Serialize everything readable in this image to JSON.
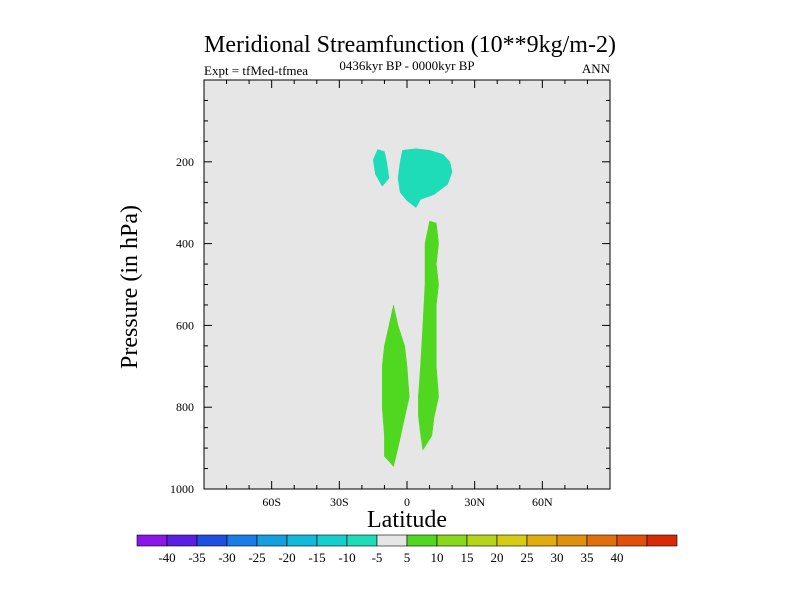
{
  "chart_data": {
    "type": "contour",
    "title": "Meridional Streamfunction (10**9kg/m-2)",
    "subtitle_left": "Expt = tfMed-tfmea",
    "subtitle_center": "0436kyr BP - 0000kyr BP",
    "subtitle_right": "ANN",
    "xlabel": "Latitude",
    "ylabel": "Pressure (in hPa)",
    "xlim": [
      -90,
      90
    ],
    "ylim": [
      1000,
      0
    ],
    "x_ticks": [
      {
        "value": -60,
        "label": "60S"
      },
      {
        "value": -30,
        "label": "30S"
      },
      {
        "value": 0,
        "label": "0"
      },
      {
        "value": 30,
        "label": "30N"
      },
      {
        "value": 60,
        "label": "60N"
      }
    ],
    "y_ticks": [
      {
        "value": 200,
        "label": "200"
      },
      {
        "value": 400,
        "label": "400"
      },
      {
        "value": 600,
        "label": "600"
      },
      {
        "value": 800,
        "label": "800"
      },
      {
        "value": 1000,
        "label": "1000"
      }
    ],
    "background_color": "#e6e6e6",
    "colorbar": {
      "labels": [
        "-40",
        "-35",
        "-30",
        "-25",
        "-20",
        "-15",
        "-10",
        "-5",
        "5",
        "10",
        "15",
        "20",
        "25",
        "30",
        "35",
        "40"
      ],
      "colors": [
        "#8a16e8",
        "#5a1fe0",
        "#1f4fe0",
        "#1a7ce6",
        "#139fe0",
        "#10bad8",
        "#14cfcc",
        "#1fdcb8",
        "#e6e6e6",
        "#50d820",
        "#88d81c",
        "#b6d418",
        "#d6cc14",
        "#e0ac10",
        "#e0900e",
        "#e0700c",
        "#e0500a",
        "#d82a06"
      ]
    },
    "regions": [
      {
        "level": "-10 to -5",
        "color": "#1fdcb8",
        "points": [
          [
            -13,
            170
          ],
          [
            -10,
            175
          ],
          [
            -9,
            200
          ],
          [
            -8,
            240
          ],
          [
            -11,
            260
          ],
          [
            -14,
            230
          ],
          [
            -15,
            195
          ]
        ]
      },
      {
        "level": "-10 to -5",
        "color": "#1fdcb8",
        "points": [
          [
            -2,
            172
          ],
          [
            4,
            168
          ],
          [
            10,
            172
          ],
          [
            16,
            182
          ],
          [
            19,
            200
          ],
          [
            20,
            225
          ],
          [
            18,
            255
          ],
          [
            12,
            280
          ],
          [
            6,
            292
          ],
          [
            4,
            312
          ],
          [
            0,
            295
          ],
          [
            -3,
            275
          ],
          [
            -4,
            240
          ],
          [
            -3,
            200
          ]
        ]
      },
      {
        "level": "5 to 10",
        "color": "#50d820",
        "points": [
          [
            -6,
            550
          ],
          [
            -4,
            600
          ],
          [
            -1,
            650
          ],
          [
            0,
            700
          ],
          [
            1,
            775
          ],
          [
            -1,
            825
          ],
          [
            -4,
            900
          ],
          [
            -6,
            945
          ],
          [
            -10,
            920
          ],
          [
            -10,
            870
          ],
          [
            -11,
            800
          ],
          [
            -11,
            750
          ],
          [
            -11,
            700
          ],
          [
            -10,
            650
          ],
          [
            -8,
            600
          ]
        ]
      },
      {
        "level": "5 to 10",
        "color": "#50d820",
        "points": [
          [
            10,
            345
          ],
          [
            13,
            350
          ],
          [
            14,
            400
          ],
          [
            13,
            450
          ],
          [
            14,
            500
          ],
          [
            13,
            550
          ],
          [
            13,
            600
          ],
          [
            13,
            650
          ],
          [
            13,
            700
          ],
          [
            14,
            775
          ],
          [
            12,
            825
          ],
          [
            11,
            870
          ],
          [
            7,
            905
          ],
          [
            6,
            865
          ],
          [
            5,
            820
          ],
          [
            5,
            775
          ],
          [
            6,
            700
          ],
          [
            7,
            600
          ],
          [
            8,
            500
          ],
          [
            8,
            450
          ],
          [
            8,
            400
          ]
        ]
      }
    ]
  }
}
